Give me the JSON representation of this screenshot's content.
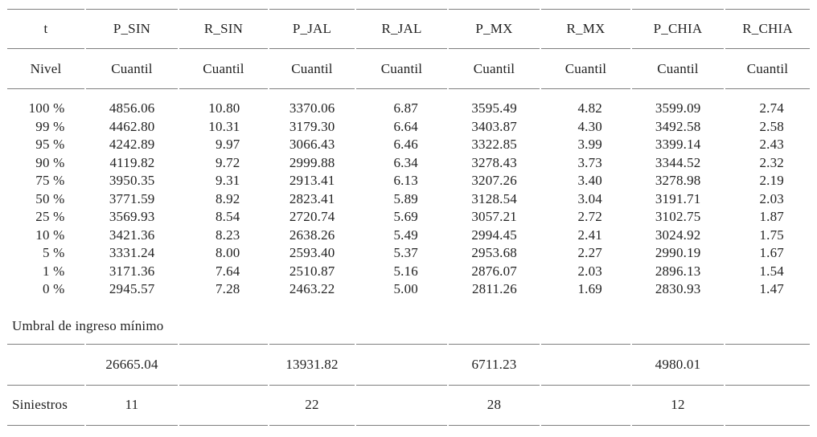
{
  "colors": {
    "rule": "#7e7e7e",
    "text": "#222222",
    "background": "#ffffff"
  },
  "table": {
    "headers": [
      "t",
      "P_SIN",
      "R_SIN",
      "P_JAL",
      "R_JAL",
      "P_MX",
      "R_MX",
      "P_CHIA",
      "R_CHIA"
    ],
    "subheaders": [
      "Nivel",
      "Cuantil",
      "Cuantil",
      "Cuantil",
      "Cuantil",
      "Cuantil",
      "Cuantil",
      "Cuantil",
      "Cuantil"
    ],
    "rows": [
      [
        "100 %",
        "4856.06",
        "10.80",
        "3370.06",
        "6.87",
        "3595.49",
        "4.82",
        "3599.09",
        "2.74"
      ],
      [
        "99 %",
        "4462.80",
        "10.31",
        "3179.30",
        "6.64",
        "3403.87",
        "4.30",
        "3492.58",
        "2.58"
      ],
      [
        "95 %",
        "4242.89",
        "9.97",
        "3066.43",
        "6.46",
        "3322.85",
        "3.99",
        "3399.14",
        "2.43"
      ],
      [
        "90 %",
        "4119.82",
        "9.72",
        "2999.88",
        "6.34",
        "3278.43",
        "3.73",
        "3344.52",
        "2.32"
      ],
      [
        "75 %",
        "3950.35",
        "9.31",
        "2913.41",
        "6.13",
        "3207.26",
        "3.40",
        "3278.98",
        "2.19"
      ],
      [
        "50 %",
        "3771.59",
        "8.92",
        "2823.41",
        "5.89",
        "3128.54",
        "3.04",
        "3191.71",
        "2.03"
      ],
      [
        "25 %",
        "3569.93",
        "8.54",
        "2720.74",
        "5.69",
        "3057.21",
        "2.72",
        "3102.75",
        "1.87"
      ],
      [
        "10 %",
        "3421.36",
        "8.23",
        "2638.26",
        "5.49",
        "2994.45",
        "2.41",
        "3024.92",
        "1.75"
      ],
      [
        "5 %",
        "3331.24",
        "8.00",
        "2593.40",
        "5.37",
        "2953.68",
        "2.27",
        "2990.19",
        "1.67"
      ],
      [
        "1 %",
        "3171.36",
        "7.64",
        "2510.87",
        "5.16",
        "2876.07",
        "2.03",
        "2896.13",
        "1.54"
      ],
      [
        "0 %",
        "2945.57",
        "7.28",
        "2463.22",
        "5.00",
        "2811.26",
        "1.69",
        "2830.93",
        "1.47"
      ]
    ],
    "umbral_label": "Umbral de ingreso mínimo",
    "umbral_values": [
      "26665.04",
      "13931.82",
      "6711.23",
      "4980.01"
    ],
    "siniestros_label": "Siniestros",
    "siniestros_values": [
      "11",
      "22",
      "28",
      "12"
    ]
  }
}
